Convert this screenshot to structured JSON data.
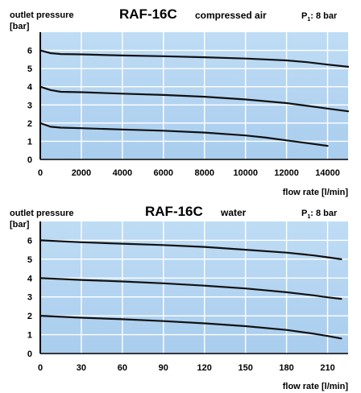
{
  "chart_data": [
    {
      "type": "line",
      "ylabel": "outlet pressure",
      "yunit": "[bar]",
      "model": "RAF-16C",
      "medium": "compressed air",
      "p1_label": "P",
      "p1_sub": "1",
      "p1_value": ": 8 bar",
      "xlabel": "flow rate [l/min]",
      "xlim": [
        0,
        15000
      ],
      "ylim": [
        0,
        7
      ],
      "x_ticks": [
        0,
        2000,
        4000,
        6000,
        8000,
        10000,
        12000,
        14000
      ],
      "y_ticks": [
        0,
        1,
        2,
        3,
        4,
        5,
        6
      ],
      "grid": true,
      "series": [
        {
          "x": [
            0,
            500,
            1000,
            2000,
            4000,
            6000,
            8000,
            10000,
            12000,
            13000,
            14000,
            15000
          ],
          "y": [
            6.0,
            5.85,
            5.8,
            5.78,
            5.72,
            5.68,
            5.62,
            5.55,
            5.45,
            5.35,
            5.22,
            5.1
          ]
        },
        {
          "x": [
            0,
            500,
            1000,
            2000,
            4000,
            6000,
            8000,
            10000,
            12000,
            13000,
            14000,
            15000
          ],
          "y": [
            4.0,
            3.82,
            3.72,
            3.7,
            3.62,
            3.55,
            3.45,
            3.3,
            3.1,
            2.95,
            2.8,
            2.65
          ]
        },
        {
          "x": [
            0,
            500,
            1000,
            2000,
            4000,
            6000,
            8000,
            10000,
            11000,
            12000,
            13000,
            14000
          ],
          "y": [
            2.0,
            1.8,
            1.75,
            1.72,
            1.65,
            1.58,
            1.48,
            1.32,
            1.2,
            1.05,
            0.9,
            0.75
          ]
        }
      ]
    },
    {
      "type": "line",
      "ylabel": "outlet pressure",
      "yunit": "[bar]",
      "model": "RAF-16C",
      "medium": "water",
      "p1_label": "P",
      "p1_sub": "1",
      "p1_value": ": 8 bar",
      "xlabel": "flow rate [l/min]",
      "xlim": [
        0,
        225
      ],
      "ylim": [
        0,
        7
      ],
      "x_ticks": [
        0,
        30,
        60,
        90,
        120,
        150,
        180,
        210
      ],
      "y_ticks": [
        0,
        1,
        2,
        3,
        4,
        5,
        6
      ],
      "grid": true,
      "series": [
        {
          "x": [
            0,
            30,
            60,
            90,
            120,
            150,
            180,
            200,
            210,
            220
          ],
          "y": [
            6.0,
            5.9,
            5.82,
            5.75,
            5.65,
            5.5,
            5.35,
            5.2,
            5.1,
            5.0
          ]
        },
        {
          "x": [
            0,
            30,
            60,
            90,
            120,
            150,
            180,
            200,
            210,
            220
          ],
          "y": [
            4.0,
            3.9,
            3.82,
            3.72,
            3.6,
            3.45,
            3.25,
            3.08,
            2.98,
            2.9
          ]
        },
        {
          "x": [
            0,
            30,
            60,
            90,
            120,
            150,
            180,
            200,
            210,
            220
          ],
          "y": [
            2.0,
            1.9,
            1.82,
            1.72,
            1.6,
            1.45,
            1.25,
            1.05,
            0.93,
            0.8
          ]
        }
      ]
    }
  ]
}
